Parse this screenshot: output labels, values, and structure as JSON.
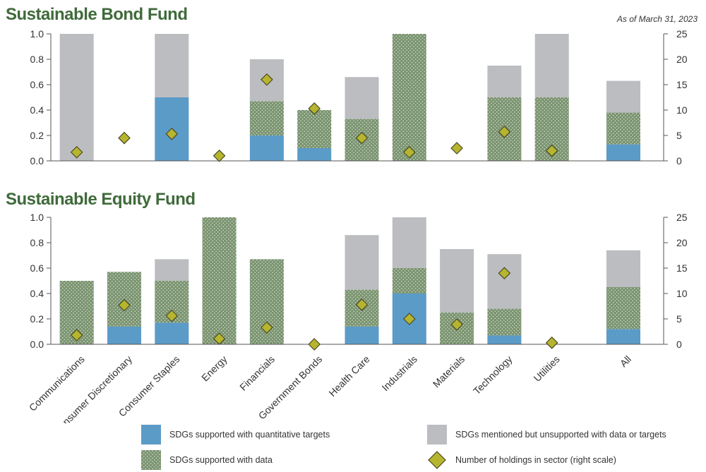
{
  "colors": {
    "quantitative": "#5b9bc8",
    "data_bg": "#7b9471",
    "data_dot": "#dce6d5",
    "mentioned": "#bcbdc0",
    "diamond_fill": "#b6b52f",
    "diamond_stroke": "#4a4a25",
    "title": "#3f6a3a",
    "axis": "#555555"
  },
  "as_of": "As of March 31, 2023",
  "legend": {
    "quantitative": "SDGs supported with quantitative targets",
    "with_data": "SDGs supported with data",
    "mentioned": "SDGs mentioned but unsupported with data or targets",
    "holdings": "Number of holdings in sector (right scale)"
  },
  "chart_data": [
    {
      "type": "bar",
      "stacked": true,
      "title": "Sustainable Bond Fund",
      "categories": [
        "Communications",
        "Consumer Discretionary",
        "Consumer Staples",
        "Energy",
        "Financials",
        "Government Bonds",
        "Health Care",
        "Industrials",
        "Materials",
        "Technology",
        "Utilities",
        "All"
      ],
      "ylim": [
        0,
        1.0
      ],
      "yticks": [
        "0.0",
        "0.2",
        "0.4",
        "0.6",
        "0.8",
        "1.0"
      ],
      "y2lim": [
        0,
        25
      ],
      "y2ticks": [
        "0",
        "5",
        "10",
        "15",
        "20",
        "25"
      ],
      "series": [
        {
          "name": "SDGs supported with quantitative targets",
          "values": [
            0,
            0,
            0.5,
            0,
            0.2,
            0.1,
            0,
            0,
            0,
            0,
            0,
            0.13
          ]
        },
        {
          "name": "SDGs supported with data",
          "values": [
            0,
            0,
            0,
            0,
            0.27,
            0.3,
            0.33,
            1.0,
            0,
            0.5,
            0.5,
            0.25
          ]
        },
        {
          "name": "SDGs mentioned but unsupported with data or targets",
          "values": [
            1.0,
            0,
            0.5,
            0,
            0.33,
            0,
            0.33,
            0,
            0,
            0.25,
            0.5,
            0.25
          ]
        },
        {
          "name": "Number of holdings in sector (right scale)",
          "axis": "right",
          "values": [
            1.7,
            4.5,
            5.3,
            1.0,
            16.0,
            10.3,
            4.5,
            1.7,
            2.5,
            5.7,
            2.0,
            null
          ]
        }
      ]
    },
    {
      "type": "bar",
      "stacked": true,
      "title": "Sustainable Equity Fund",
      "categories": [
        "Communications",
        "Consumer Discretionary",
        "Consumer Staples",
        "Energy",
        "Financials",
        "Government Bonds",
        "Health Care",
        "Industrials",
        "Materials",
        "Technology",
        "Utilities",
        "All"
      ],
      "ylim": [
        0,
        1.0
      ],
      "yticks": [
        "0.0",
        "0.2",
        "0.4",
        "0.6",
        "0.8",
        "1.0"
      ],
      "y2lim": [
        0,
        25
      ],
      "y2ticks": [
        "0",
        "5",
        "10",
        "15",
        "20",
        "25"
      ],
      "series": [
        {
          "name": "SDGs supported with quantitative targets",
          "values": [
            0,
            0.14,
            0.17,
            0,
            0,
            0,
            0.14,
            0.4,
            0,
            0.07,
            0,
            0.12
          ]
        },
        {
          "name": "SDGs supported with data",
          "values": [
            0.5,
            0.43,
            0.33,
            1.0,
            0.67,
            0,
            0.29,
            0.2,
            0.25,
            0.21,
            0,
            0.33
          ]
        },
        {
          "name": "SDGs mentioned but unsupported with data or targets",
          "values": [
            0,
            0,
            0.17,
            0,
            0,
            0,
            0.43,
            0.4,
            0.5,
            0.43,
            0,
            0.29
          ]
        },
        {
          "name": "Number of holdings in sector (right scale)",
          "axis": "right",
          "values": [
            1.8,
            7.7,
            5.6,
            1.1,
            3.3,
            0,
            7.8,
            5.0,
            3.9,
            14.0,
            0.3,
            null
          ]
        }
      ]
    }
  ]
}
